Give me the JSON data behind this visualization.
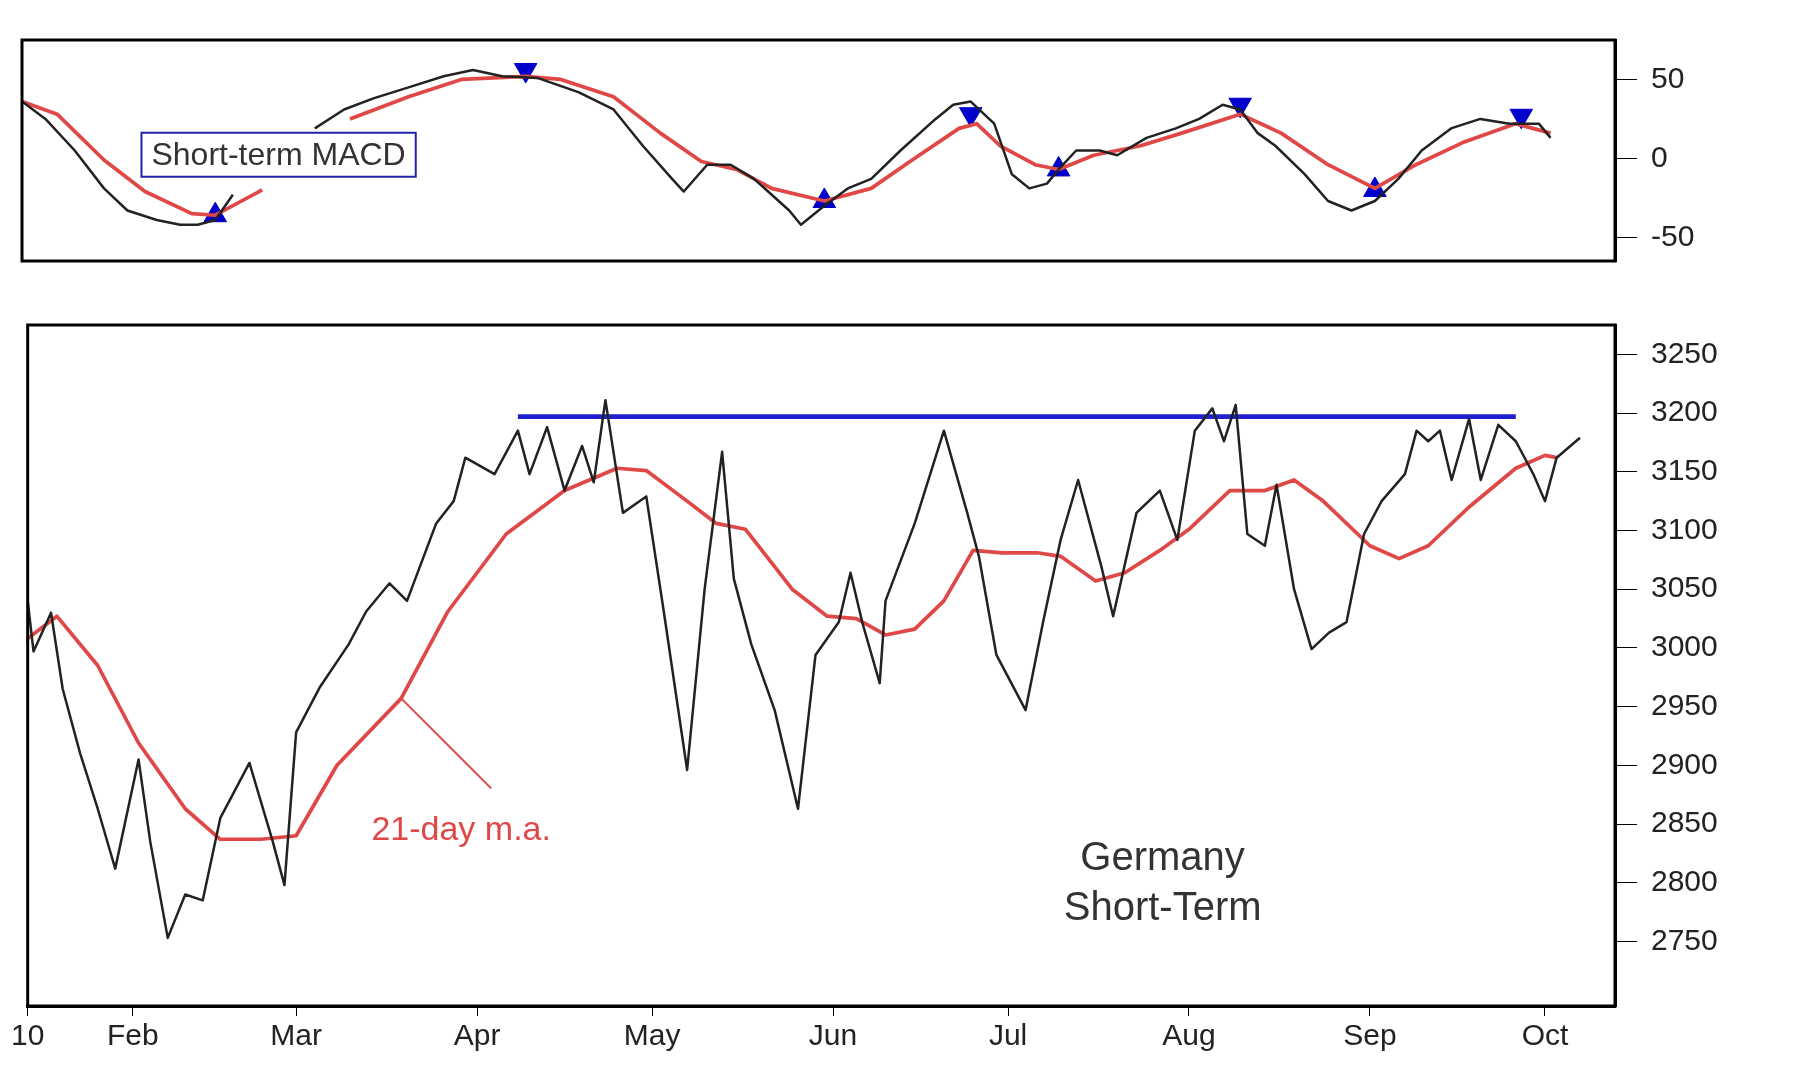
{
  "chart_data": [
    {
      "type": "line",
      "annotations": [
        "Short-term MACD"
      ],
      "xlim": [
        "--01-14",
        "--10-13"
      ],
      "ylim": [
        -65,
        75
      ],
      "yticks": [
        -50,
        0,
        50
      ],
      "tick_labels": "y",
      "grid": false,
      "legend": false,
      "series": [
        {
          "color": "#222222",
          "x": [
            "--01-14",
            "--01-18",
            "--01-23",
            "--01-28",
            "--02-01",
            "--02-06",
            "--02-10",
            "--02-13",
            "--02-16",
            "--02-19",
            "--02-24",
            "--02-28",
            "--03-05",
            "--03-10",
            "--03-15",
            "--03-21",
            "--03-27",
            "--04-01",
            "--04-06",
            "--04-12",
            "--04-19",
            "--04-25",
            "--04-30",
            "--05-05",
            "--05-07",
            "--05-11",
            "--05-15",
            "--05-19",
            "--05-25",
            "--05-27",
            "--05-31",
            "--06-04",
            "--06-08",
            "--06-13",
            "--06-19",
            "--06-22",
            "--06-25",
            "--06-29",
            "--07-02",
            "--07-05",
            "--07-08",
            "--07-10",
            "--07-13",
            "--07-17",
            "--07-20",
            "--07-25",
            "--07-30",
            "--08-03",
            "--08-07",
            "--08-10",
            "--08-13",
            "--08-16",
            "--08-21",
            "--08-25",
            "--08-29",
            "--09-02",
            "--09-06",
            "--09-10",
            "--09-15",
            "--09-20",
            "--09-25",
            "--09-30",
            "--10-02"
          ],
          "values": [
            36,
            25,
            5,
            -19,
            -33,
            -39,
            -42,
            -42,
            -39,
            -23,
            null,
            null,
            19,
            31,
            38,
            45,
            52,
            56,
            52,
            51,
            42,
            31,
            8,
            -13,
            -21,
            -4,
            -4,
            -13,
            -33,
            -42,
            -30,
            -19,
            -13,
            5,
            25,
            34,
            36,
            22,
            -10,
            -19,
            -16,
            -7,
            5,
            5,
            2,
            13,
            19,
            25,
            34,
            31,
            16,
            8,
            -10,
            -27,
            -33,
            -27,
            -13,
            5,
            19,
            25,
            22,
            22,
            13
          ]
        },
        {
          "color": "#e04848",
          "x": [
            "--01-14",
            "--01-20",
            "--01-28",
            "--02-04",
            "--02-12",
            "--02-16",
            "--02-24",
            "--03-04",
            "--03-11",
            "--03-21",
            "--03-30",
            "--04-10",
            "--04-16",
            "--04-25",
            "--05-03",
            "--05-10",
            "--05-16",
            "--05-22",
            "--05-31",
            "--06-08",
            "--06-15",
            "--06-23",
            "--06-26",
            "--06-30",
            "--07-06",
            "--07-10",
            "--07-16",
            "--07-24",
            "--07-31",
            "--08-10",
            "--08-17",
            "--08-25",
            "--09-02",
            "--09-09",
            "--09-17",
            "--09-26",
            "--10-02"
          ],
          "values": [
            36,
            28,
            -1,
            -21,
            -35,
            -36,
            -20,
            null,
            25,
            39,
            50,
            52,
            50,
            39,
            16,
            -2,
            -7,
            -19,
            -27,
            -19,
            -1,
            19,
            22,
            8,
            -4,
            -7,
            2,
            8,
            16,
            28,
            16,
            -4,
            -19,
            -4,
            10,
            22,
            16
          ]
        },
        {
          "type": "scatter",
          "marker": "triangle",
          "color": "#0000cc",
          "x": [
            "--02-16",
            "--05-31",
            "--07-10",
            "--09-02"
          ],
          "values": [
            -36,
            -27,
            -7,
            -20
          ]
        },
        {
          "type": "scatter",
          "marker": "triangle-down",
          "color": "#0000cc",
          "x": [
            "--04-10",
            "--06-25",
            "--08-10",
            "--09-27"
          ],
          "values": [
            56,
            28,
            34,
            27
          ]
        }
      ]
    },
    {
      "type": "line",
      "title": "Germany",
      "subtitle": "Short-Term",
      "annotations": [
        {
          "text": "21-day m.a.",
          "x": "--03-19",
          "y": 2957
        }
      ],
      "xlim": [
        "--01-14",
        "--10-13"
      ],
      "xticks": [
        {
          "value": "--01-14",
          "label": "10"
        },
        {
          "value": "--02-01",
          "label": "Feb"
        },
        {
          "value": "--03-01",
          "label": "Mar"
        },
        {
          "value": "--04-01",
          "label": "Apr"
        },
        {
          "value": "--05-01",
          "label": "May"
        },
        {
          "value": "--06-01",
          "label": "Jun"
        },
        {
          "value": "--07-01",
          "label": "Jul"
        },
        {
          "value": "--08-01",
          "label": "Aug"
        },
        {
          "value": "--09-01",
          "label": "Sep"
        },
        {
          "value": "--10-01",
          "label": "Oct"
        }
      ],
      "ylim": [
        2695,
        3275
      ],
      "yticks": [
        2750,
        2800,
        2850,
        2900,
        2950,
        3000,
        3050,
        3100,
        3150,
        3200,
        3250
      ],
      "grid": false,
      "legend": false,
      "series": [
        {
          "color": "#222222",
          "x": [
            "--01-14",
            "--01-15",
            "--01-18",
            "--01-20",
            "--01-23",
            "--01-26",
            "--01-29",
            "--02-02",
            "--02-04",
            "--02-07",
            "--02-10",
            "--02-13",
            "--02-16",
            "--02-21",
            "--02-25",
            "--02-27",
            "--03-01",
            "--03-05",
            "--03-10",
            "--03-13",
            "--03-17",
            "--03-20",
            "--03-25",
            "--03-28",
            "--03-30",
            "--04-04",
            "--04-08",
            "--04-10",
            "--04-13",
            "--04-16",
            "--04-19",
            "--04-21",
            "--04-23",
            "--04-26",
            "--04-30",
            "--05-03",
            "--05-07",
            "--05-10",
            "--05-13",
            "--05-15",
            "--05-18",
            "--05-22",
            "--05-26",
            "--05-29",
            "--06-02",
            "--06-04",
            "--06-06",
            "--06-09",
            "--06-10",
            "--06-15",
            "--06-20",
            "--06-24",
            "--06-26",
            "--06-29",
            "--07-04",
            "--07-07",
            "--07-10",
            "--07-13",
            "--07-17",
            "--07-19",
            "--07-23",
            "--07-27",
            "--07-30",
            "--08-02",
            "--08-05",
            "--08-07",
            "--08-09",
            "--08-11",
            "--08-14",
            "--08-16",
            "--08-19",
            "--08-22",
            "--08-25",
            "--08-28",
            "--08-31",
            "--09-03",
            "--09-07",
            "--09-09",
            "--09-11",
            "--09-13",
            "--09-15",
            "--09-18",
            "--09-20",
            "--09-23",
            "--09-26",
            "--09-29",
            "--10-01",
            "--10-03",
            "--10-07"
          ],
          "values": [
            3040,
            2997,
            3030,
            2965,
            2910,
            2863,
            2812,
            2905,
            2835,
            2753,
            2790,
            2785,
            2855,
            2902,
            2835,
            2798,
            2928,
            2966,
            3003,
            3031,
            3055,
            3040,
            3106,
            3125,
            3162,
            3148,
            3185,
            3148,
            3188,
            3134,
            3172,
            3141,
            3211,
            3115,
            3129,
            3031,
            2896,
            3050,
            3167,
            3059,
            3003,
            2947,
            2863,
            2994,
            3022,
            3064,
            3022,
            2970,
            3040,
            3106,
            3185,
            3115,
            3078,
            2994,
            2947,
            3022,
            3092,
            3143,
            3069,
            3027,
            3115,
            3134,
            3092,
            3185,
            3204,
            3176,
            3207,
            3097,
            3087,
            3139,
            3050,
            2999,
            3013,
            3022,
            3097,
            3125,
            3148,
            3185,
            3176,
            3185,
            3143,
            3195,
            3143,
            3190,
            3176,
            3148,
            3125,
            3162,
            3179
          ]
        },
        {
          "color": "#e04848",
          "x": [
            "--01-14",
            "--01-19",
            "--01-26",
            "--02-02",
            "--02-10",
            "--02-16",
            "--02-23",
            "--03-01",
            "--03-08",
            "--03-19",
            "--03-27",
            "--04-06",
            "--04-16",
            "--04-25",
            "--04-30",
            "--05-07",
            "--05-12",
            "--05-17",
            "--05-25",
            "--05-31",
            "--06-05",
            "--06-10",
            "--06-15",
            "--06-20",
            "--06-25",
            "--06-30",
            "--07-06",
            "--07-10",
            "--07-16",
            "--07-21",
            "--07-27",
            "--08-01",
            "--08-08",
            "--08-14",
            "--08-19",
            "--08-24",
            "--09-01",
            "--09-06",
            "--09-11",
            "--09-18",
            "--09-26",
            "--10-01",
            "--10-03"
          ],
          "values": [
            3008,
            3027,
            2985,
            2919,
            2863,
            2837,
            2837,
            2840,
            2900,
            2957,
            3031,
            3097,
            3134,
            3153,
            3151,
            3125,
            3106,
            3101,
            3050,
            3027,
            3025,
            3011,
            3016,
            3040,
            3083,
            3081,
            3081,
            3078,
            3057,
            3064,
            3083,
            3101,
            3134,
            3134,
            3143,
            3125,
            3087,
            3076,
            3087,
            3120,
            3153,
            3164,
            3162
          ]
        },
        {
          "color": "#2020d0",
          "x": [
            "--04-08",
            "--09-26"
          ],
          "values": [
            3197,
            3197
          ]
        }
      ]
    }
  ]
}
